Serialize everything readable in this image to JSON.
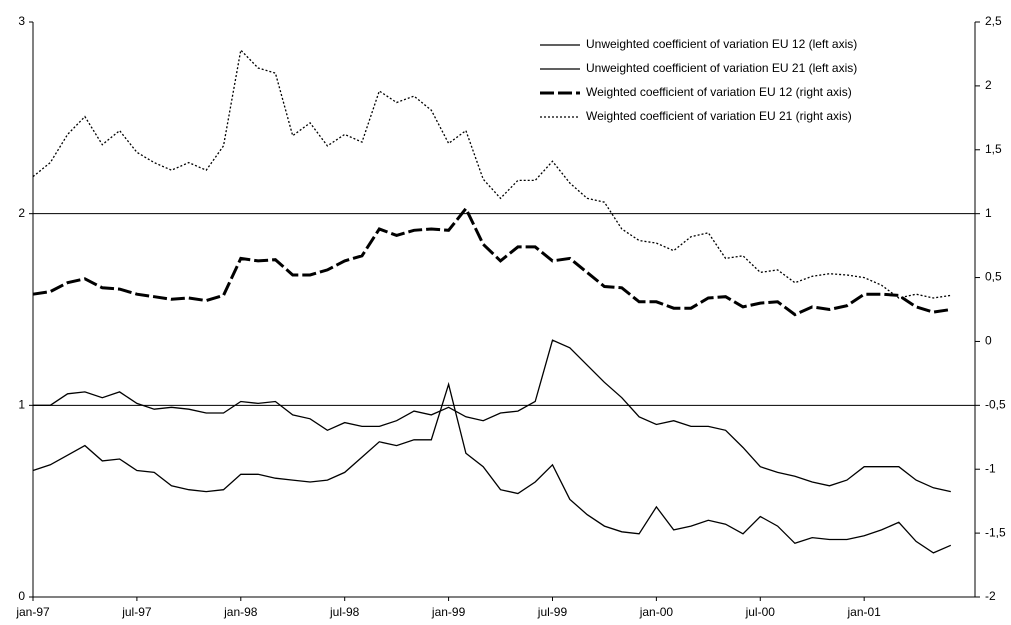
{
  "chart_data": {
    "type": "line",
    "categories": [
      "jan-97",
      null,
      null,
      null,
      null,
      null,
      "jul-97",
      null,
      null,
      null,
      null,
      null,
      "jan-98",
      null,
      null,
      null,
      null,
      null,
      "jul-98",
      null,
      null,
      null,
      null,
      null,
      "jan-99",
      null,
      null,
      null,
      null,
      null,
      "jul-99",
      null,
      null,
      null,
      null,
      null,
      "jan-00",
      null,
      null,
      null,
      null,
      null,
      "jul-00",
      null,
      null,
      null,
      null,
      null,
      "jan-01",
      null,
      null,
      null,
      null,
      null
    ],
    "series": [
      {
        "name": "Unweighted coefficient of variation EU 12 (left axis)",
        "color": "#000000",
        "style": "solid",
        "axis": "y",
        "values": [
          1.0,
          1.0,
          1.06,
          1.07,
          1.04,
          1.07,
          1.01,
          0.98,
          0.99,
          0.98,
          0.96,
          0.96,
          1.02,
          1.01,
          1.02,
          0.95,
          0.93,
          0.87,
          0.91,
          0.89,
          0.89,
          0.92,
          0.97,
          0.95,
          0.99,
          0.94,
          0.92,
          0.96,
          0.97,
          1.02,
          1.34,
          1.3,
          1.21,
          1.12,
          1.04,
          0.94,
          0.9,
          0.92,
          0.89,
          0.89,
          0.87,
          0.78,
          0.68,
          0.65,
          0.63,
          0.6,
          0.58,
          0.61,
          0.68,
          0.68,
          0.68,
          0.61,
          0.57,
          0.55
        ]
      },
      {
        "name": "Unweighted coefficient of variation EU 21 (left axis)",
        "color": "#000000",
        "style": "solid",
        "axis": "y",
        "values": [
          0.66,
          0.69,
          0.74,
          0.79,
          0.71,
          0.72,
          0.66,
          0.65,
          0.58,
          0.56,
          0.55,
          0.56,
          0.64,
          0.64,
          0.62,
          0.61,
          0.6,
          0.61,
          0.65,
          0.73,
          0.81,
          0.79,
          0.82,
          0.82,
          1.11,
          0.75,
          0.68,
          0.56,
          0.54,
          0.6,
          0.69,
          0.51,
          0.43,
          0.37,
          0.34,
          0.33,
          0.47,
          0.35,
          0.37,
          0.4,
          0.38,
          0.33,
          0.42,
          0.37,
          0.28,
          0.31,
          0.3,
          0.3,
          0.32,
          0.35,
          0.39,
          0.29,
          0.23,
          0.27
        ]
      },
      {
        "name": "Weighted coefficient of variation EU 12 (right axis)",
        "color": "#000000",
        "style": "dashed",
        "axis": "y2",
        "values": [
          0.37,
          0.39,
          0.46,
          0.49,
          0.42,
          0.41,
          0.37,
          0.35,
          0.33,
          0.34,
          0.32,
          0.36,
          0.65,
          0.63,
          0.64,
          0.52,
          0.52,
          0.56,
          0.63,
          0.67,
          0.88,
          0.83,
          0.87,
          0.88,
          0.87,
          1.04,
          0.76,
          0.63,
          0.74,
          0.74,
          0.63,
          0.65,
          0.54,
          0.43,
          0.42,
          0.31,
          0.31,
          0.26,
          0.26,
          0.34,
          0.35,
          0.27,
          0.3,
          0.31,
          0.21,
          0.27,
          0.25,
          0.28,
          0.37,
          0.37,
          0.36,
          0.27,
          0.23,
          0.25
        ]
      },
      {
        "name": "Weighted coefficient of variation EU 21 (right axis)",
        "color": "#000000",
        "style": "dotted",
        "axis": "y2",
        "values": [
          1.29,
          1.4,
          1.62,
          1.76,
          1.54,
          1.65,
          1.48,
          1.4,
          1.34,
          1.4,
          1.34,
          1.53,
          2.28,
          2.14,
          2.1,
          1.61,
          1.71,
          1.53,
          1.62,
          1.56,
          1.96,
          1.87,
          1.92,
          1.81,
          1.55,
          1.65,
          1.27,
          1.12,
          1.26,
          1.26,
          1.41,
          1.24,
          1.12,
          1.09,
          0.88,
          0.79,
          0.77,
          0.71,
          0.82,
          0.85,
          0.65,
          0.67,
          0.54,
          0.56,
          0.46,
          0.51,
          0.53,
          0.52,
          0.5,
          0.44,
          0.34,
          0.37,
          0.34,
          0.36
        ]
      }
    ],
    "ylim": [
      0,
      3
    ],
    "yticks": [
      0,
      1,
      2,
      3
    ],
    "y2lim": [
      -2,
      2.5
    ],
    "y2ticks": [
      -2,
      {
        "value": -1.5,
        "label": "-1,5"
      },
      -1,
      {
        "value": -0.5,
        "label": "-0,5"
      },
      0,
      {
        "value": 0.5,
        "label": "0,5"
      },
      1,
      {
        "value": 1.5,
        "label": "1,5"
      },
      2,
      {
        "value": 2.5,
        "label": "2,5"
      }
    ],
    "grid": true,
    "legend": "upper right"
  }
}
